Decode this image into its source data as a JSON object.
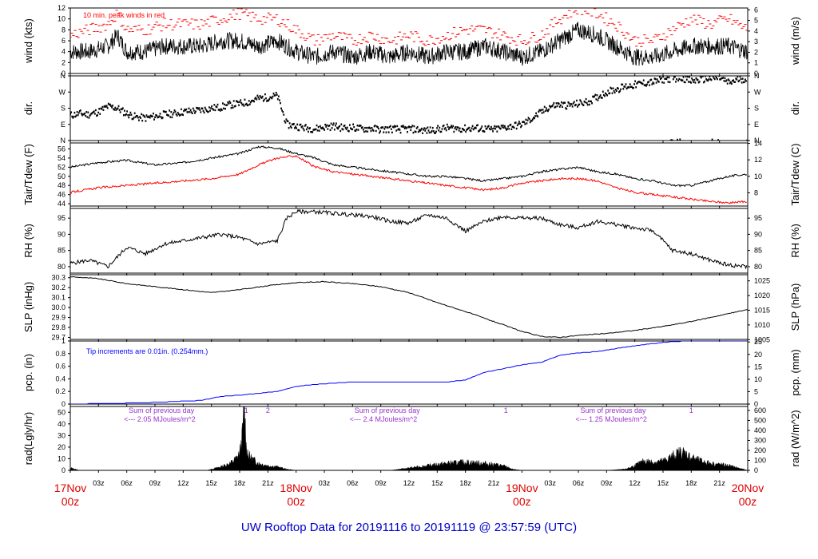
{
  "footer_title": "UW Rooftop Data for 20191116  to  20191119 @ 23:57:59  (UTC)",
  "colors": {
    "peak": "#ff0000",
    "dew": "#ff0000",
    "pcp": "#0000ff",
    "rad_note": "#9933cc",
    "footer": "#0000cc",
    "axis_major": "#e00000"
  },
  "x_axis": {
    "minor_ticks": [
      {
        "hour": 3,
        "label": "03z"
      },
      {
        "hour": 6,
        "label": "06z"
      },
      {
        "hour": 9,
        "label": "09z"
      },
      {
        "hour": 12,
        "label": "12z"
      },
      {
        "hour": 15,
        "label": "15z"
      },
      {
        "hour": 18,
        "label": "18z"
      },
      {
        "hour": 21,
        "label": "21z"
      },
      {
        "hour": 27,
        "label": "03z"
      },
      {
        "hour": 30,
        "label": "06z"
      },
      {
        "hour": 33,
        "label": "09z"
      },
      {
        "hour": 36,
        "label": "12z"
      },
      {
        "hour": 39,
        "label": "15z"
      },
      {
        "hour": 42,
        "label": "18z"
      },
      {
        "hour": 45,
        "label": "21z"
      },
      {
        "hour": 51,
        "label": "03z"
      },
      {
        "hour": 54,
        "label": "06z"
      },
      {
        "hour": 57,
        "label": "09z"
      },
      {
        "hour": 60,
        "label": "12z"
      },
      {
        "hour": 63,
        "label": "15z"
      },
      {
        "hour": 66,
        "label": "18z"
      },
      {
        "hour": 69,
        "label": "21z"
      }
    ],
    "major_ticks": [
      {
        "hour": 0,
        "date": "17Nov",
        "time": "00z"
      },
      {
        "hour": 24,
        "date": "18Nov",
        "time": "00z"
      },
      {
        "hour": 48,
        "date": "19Nov",
        "time": "00z"
      },
      {
        "hour": 72,
        "date": "20Nov",
        "time": "00z"
      }
    ]
  },
  "chart_data": [
    {
      "id": "wind",
      "type": "line",
      "left_label": "wind (kts)",
      "right_label": "wind (m/s)",
      "ylim": [
        0,
        12
      ],
      "left_ticks": [
        0,
        2,
        4,
        6,
        8,
        10,
        12
      ],
      "right_ticks": [
        0,
        1,
        2,
        3,
        4,
        5,
        6
      ],
      "right_scale": 0.5144,
      "annotation": "10 min. peak winds in red",
      "series": [
        {
          "role": "mean",
          "x": [
            0,
            2,
            4,
            5,
            6,
            8,
            10,
            12,
            14,
            16,
            18,
            20,
            22,
            24,
            26,
            28,
            30,
            32,
            34,
            36,
            38,
            40,
            42,
            44,
            46,
            48,
            50,
            52,
            54,
            56,
            58,
            60,
            62,
            64,
            66,
            68,
            70,
            72
          ],
          "values": [
            4,
            4,
            5,
            7,
            4,
            4,
            5,
            5,
            5,
            6,
            6,
            5,
            6,
            4,
            3,
            4,
            3,
            4,
            3,
            4,
            3,
            4,
            4,
            5,
            4,
            3,
            4,
            6,
            8,
            7,
            5,
            3,
            3,
            4,
            5,
            5,
            5,
            4
          ]
        },
        {
          "role": "peak",
          "x": [
            0,
            2,
            4,
            5,
            6,
            8,
            10,
            12,
            14,
            16,
            18,
            20,
            22,
            24,
            26,
            28,
            30,
            32,
            34,
            36,
            38,
            40,
            42,
            44,
            46,
            48,
            50,
            52,
            54,
            56,
            58,
            60,
            62,
            64,
            66,
            68,
            70,
            72
          ],
          "values": [
            7,
            8,
            9,
            11,
            8,
            8,
            9,
            9,
            9,
            10,
            11,
            10,
            10,
            8,
            6,
            7,
            6,
            7,
            6,
            7,
            6,
            7,
            8,
            8,
            7,
            6,
            7,
            10,
            12,
            11,
            9,
            6,
            6,
            8,
            10,
            9,
            10,
            8
          ]
        }
      ]
    },
    {
      "id": "dir",
      "type": "scatter",
      "left_label": "dir.",
      "right_label": "dir.",
      "ylim": [
        0,
        360
      ],
      "tick_values": [
        0,
        90,
        180,
        270,
        360
      ],
      "tick_labels": [
        "N",
        "E",
        "S",
        "W",
        "N"
      ],
      "series": [
        {
          "name": "direction",
          "x": [
            0,
            1,
            2,
            3,
            4,
            5,
            6,
            7,
            8,
            9,
            10,
            11,
            12,
            13,
            14,
            15,
            16,
            17,
            18,
            19,
            20,
            21,
            22,
            23,
            24,
            25,
            26,
            27,
            28,
            29,
            30,
            31,
            32,
            33,
            34,
            35,
            36,
            37,
            38,
            39,
            40,
            41,
            42,
            43,
            44,
            45,
            46,
            47,
            48,
            49,
            50,
            51,
            52,
            53,
            54,
            55,
            56,
            57,
            58,
            59,
            60,
            61,
            62,
            63,
            64,
            65,
            66,
            67,
            68,
            69,
            70,
            71,
            72
          ],
          "values": [
            140,
            150,
            145,
            160,
            190,
            180,
            150,
            130,
            125,
            135,
            145,
            150,
            160,
            165,
            170,
            180,
            185,
            200,
            205,
            215,
            235,
            240,
            250,
            90,
            80,
            70,
            65,
            75,
            80,
            70,
            72,
            65,
            68,
            60,
            65,
            62,
            65,
            60,
            55,
            62,
            70,
            68,
            65,
            70,
            65,
            60,
            72,
            80,
            90,
            120,
            155,
            190,
            200,
            195,
            205,
            215,
            240,
            270,
            285,
            300,
            310,
            320,
            325,
            340,
            345,
            350,
            330,
            340,
            345,
            350,
            320,
            340,
            345
          ]
        }
      ]
    },
    {
      "id": "temp",
      "type": "line",
      "left_label": "Tair/Tdew (F)",
      "right_label": "Tair/Tdew (C)",
      "ylim": [
        43.5,
        57.3
      ],
      "left_ticks": [
        44,
        46,
        48,
        50,
        52,
        54,
        56
      ],
      "right_ticks": [
        8,
        10,
        12,
        14
      ],
      "right_convert": "F_to_C",
      "series": [
        {
          "name": "Tair",
          "x": [
            0,
            3,
            6,
            9,
            12,
            15,
            18,
            20,
            22,
            24,
            26,
            28,
            30,
            32,
            34,
            36,
            38,
            40,
            42,
            44,
            46,
            48,
            50,
            52,
            54,
            56,
            58,
            60,
            62,
            64,
            66,
            68,
            70,
            72
          ],
          "values": [
            52,
            53,
            53.5,
            52.5,
            53,
            54,
            55,
            56.5,
            56.2,
            55,
            54,
            52.5,
            52,
            51.5,
            51,
            50.5,
            50,
            50,
            49.5,
            49,
            49.5,
            50,
            51,
            51.5,
            52,
            51,
            50.5,
            49.5,
            49,
            48,
            48,
            49,
            50,
            50.5
          ]
        },
        {
          "name": "Tdew",
          "x": [
            0,
            3,
            6,
            9,
            12,
            15,
            18,
            20,
            22,
            24,
            26,
            28,
            30,
            32,
            34,
            36,
            38,
            40,
            42,
            44,
            46,
            48,
            50,
            52,
            54,
            56,
            58,
            60,
            62,
            64,
            66,
            68,
            70,
            72
          ],
          "values": [
            46.5,
            47.5,
            48,
            48.5,
            49,
            49.5,
            50.5,
            52.5,
            54,
            54.5,
            52,
            51,
            50.5,
            50,
            49.5,
            49,
            48.5,
            48,
            47.5,
            47,
            47.5,
            48.5,
            49,
            49.5,
            49.5,
            49,
            47.5,
            46.5,
            46,
            45.5,
            45,
            44.5,
            44.2,
            44.5
          ]
        }
      ]
    },
    {
      "id": "rh",
      "type": "line",
      "left_label": "RH (%)",
      "right_label": "RH (%)",
      "ylim": [
        78,
        98
      ],
      "left_ticks": [
        80,
        85,
        90,
        95
      ],
      "right_ticks": [
        80,
        85,
        90,
        95
      ],
      "series": [
        {
          "name": "RH",
          "x": [
            0,
            2,
            4,
            6,
            8,
            10,
            12,
            14,
            16,
            18,
            20,
            22,
            23,
            24,
            26,
            28,
            30,
            32,
            34,
            36,
            38,
            40,
            42,
            44,
            46,
            48,
            50,
            52,
            54,
            56,
            58,
            60,
            62,
            64,
            66,
            68,
            70,
            72
          ],
          "values": [
            81,
            82,
            80,
            86,
            84,
            87,
            88,
            89,
            90,
            89,
            87,
            88,
            95,
            97,
            97,
            96.5,
            96,
            95.5,
            94,
            93.5,
            96,
            95,
            91,
            94,
            95.5,
            95,
            95,
            93,
            92,
            94,
            93,
            92,
            91,
            85,
            84,
            82,
            80.5,
            80
          ]
        }
      ]
    },
    {
      "id": "slp",
      "type": "line",
      "left_label": "SLP (inHg)",
      "right_label": "SLP (hPa)",
      "ylim": [
        29.68,
        30.33
      ],
      "left_ticks": [
        29.7,
        29.8,
        29.9,
        30.0,
        30.1,
        30.2,
        30.3
      ],
      "right_ticks": [
        1005,
        1010,
        1015,
        1020,
        1025
      ],
      "right_convert": "inHg_to_hPa",
      "series": [
        {
          "name": "SLP",
          "x": [
            0,
            3,
            6,
            9,
            12,
            15,
            18,
            21,
            24,
            27,
            30,
            33,
            36,
            39,
            42,
            45,
            48,
            50,
            52,
            54,
            57,
            60,
            63,
            66,
            69,
            72
          ],
          "values": [
            30.31,
            30.29,
            30.24,
            30.21,
            30.18,
            30.15,
            30.18,
            30.22,
            30.25,
            30.26,
            30.24,
            30.21,
            30.15,
            30.05,
            29.96,
            29.86,
            29.76,
            29.71,
            29.7,
            29.72,
            29.74,
            29.77,
            29.81,
            29.86,
            29.92,
            29.98
          ]
        }
      ]
    },
    {
      "id": "pcp",
      "type": "line",
      "left_label": "pcp. (in)",
      "right_label": "pcp. (mm)",
      "ylim": [
        0,
        1.0
      ],
      "left_ticks": [
        0,
        0.2,
        0.4,
        0.6,
        0.8,
        1.0
      ],
      "right_ticks": [
        0,
        5,
        10,
        15,
        20,
        25
      ],
      "right_scale": 25.4,
      "annotation": "Tip increments are 0.01in. (0.254mm.)",
      "series": [
        {
          "name": "precip",
          "x": [
            0,
            8,
            14,
            16,
            18,
            20,
            22,
            24,
            26,
            28,
            30,
            40,
            42,
            44,
            46,
            48,
            50,
            52,
            54,
            56,
            58,
            60,
            62,
            64,
            66,
            72
          ],
          "values": [
            0,
            0.02,
            0.06,
            0.12,
            0.14,
            0.17,
            0.2,
            0.28,
            0.31,
            0.33,
            0.35,
            0.35,
            0.38,
            0.5,
            0.56,
            0.62,
            0.66,
            0.77,
            0.81,
            0.83,
            0.88,
            0.92,
            0.96,
            0.99,
            1.0,
            1.0
          ]
        }
      ]
    },
    {
      "id": "rad",
      "type": "area",
      "left_label": "rad(Lgly/hr)",
      "right_label": "rad (W/m^2)",
      "ylim": [
        0,
        55
      ],
      "left_ticks": [
        0,
        10,
        20,
        30,
        40,
        50
      ],
      "right_ticks": [
        0,
        100,
        200,
        300,
        400,
        500,
        600
      ],
      "right_scale": 11.63,
      "annotations": [
        {
          "hour": 4,
          "line1": "Sum of previous day",
          "line2": "<--- 2.05 MJoules/m^2"
        },
        {
          "hour": 18.7,
          "line1": "1"
        },
        {
          "hour": 21,
          "line1": "2"
        },
        {
          "hour": 28,
          "line1": "Sum of previous day",
          "line2": "<--- 2.4 MJoules/m^2"
        },
        {
          "hour": 46.3,
          "line1": "1"
        },
        {
          "hour": 52,
          "line1": "Sum of previous day",
          "line2": "<--- 1.25 MJoules/m^2"
        },
        {
          "hour": 66,
          "line1": "1"
        }
      ],
      "series": [
        {
          "name": "radiation",
          "x": [
            0,
            0.1,
            0.5,
            1,
            14.5,
            15,
            16,
            17,
            17.5,
            18,
            18.3,
            18.5,
            18.7,
            19,
            19.5,
            20,
            21,
            22,
            23,
            24,
            34,
            36,
            38,
            40,
            42,
            44,
            45,
            46,
            47,
            48,
            54,
            57,
            59,
            60,
            61,
            62,
            63,
            64,
            65,
            66,
            67,
            68,
            69,
            70,
            71,
            72
          ],
          "values": [
            0,
            2,
            1,
            0,
            0,
            1,
            3,
            6,
            9,
            14,
            30,
            55,
            20,
            12,
            9,
            6,
            4,
            3,
            1,
            0,
            0,
            2,
            4,
            6,
            7,
            6,
            5,
            4,
            1,
            0,
            0,
            0,
            1,
            4,
            8,
            7,
            8,
            12,
            16,
            11,
            8,
            6,
            5,
            4,
            2,
            0
          ]
        }
      ]
    }
  ]
}
